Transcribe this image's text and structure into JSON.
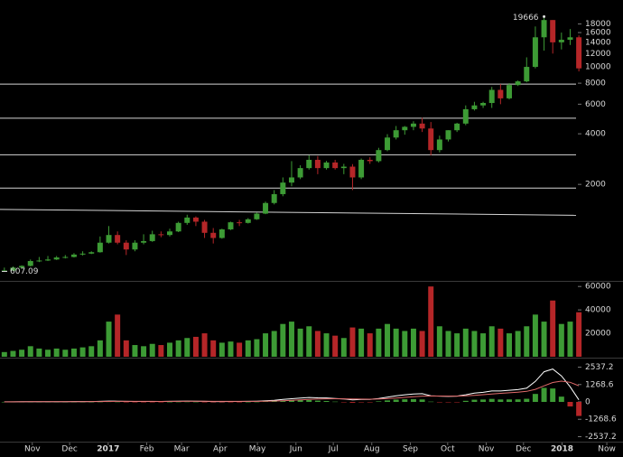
{
  "chart_data": {
    "type": "candlestick",
    "categories": [
      null,
      null,
      null,
      null,
      null,
      null,
      null,
      null,
      null,
      null,
      null,
      null,
      null,
      null,
      null,
      null,
      null,
      null,
      null,
      null,
      null,
      null,
      null,
      null,
      null,
      null,
      null,
      null,
      null,
      null,
      null,
      null,
      null,
      null,
      null,
      null,
      null,
      null,
      null,
      null,
      null,
      null,
      null,
      null,
      null,
      null,
      null,
      null,
      null,
      null,
      null,
      null,
      null,
      null,
      null,
      null,
      null,
      null,
      null,
      null,
      null,
      null,
      null,
      null,
      null,
      null,
      null
    ],
    "open": [
      610,
      615,
      640,
      655,
      700,
      705,
      715,
      735,
      740,
      765,
      775,
      790,
      900,
      1000,
      900,
      820,
      900,
      920,
      1010,
      1000,
      1050,
      1180,
      1270,
      1200,
      1030,
      960,
      1080,
      1190,
      1180,
      1240,
      1340,
      1550,
      1750,
      2050,
      2200,
      2500,
      2800,
      2500,
      2700,
      2500,
      2550,
      2200,
      2800,
      2750,
      3200,
      3800,
      4200,
      4400,
      4600,
      4300,
      3200,
      3700,
      4200,
      4600,
      5600,
      5900,
      6100,
      7300,
      6500,
      7800,
      8200,
      10000,
      15000,
      19000,
      14000,
      14500,
      15000
    ],
    "high": [
      640,
      650,
      660,
      715,
      740,
      750,
      750,
      760,
      780,
      800,
      800,
      980,
      1130,
      1050,
      930,
      930,
      1010,
      1060,
      1050,
      1090,
      1200,
      1320,
      1290,
      1230,
      1100,
      1090,
      1200,
      1230,
      1260,
      1360,
      1580,
      1850,
      2200,
      2750,
      2600,
      2980,
      2950,
      2760,
      2800,
      2650,
      2640,
      2850,
      2900,
      3300,
      3980,
      4450,
      4450,
      4750,
      4980,
      4700,
      3900,
      4200,
      4650,
      5900,
      6200,
      6200,
      7600,
      7900,
      8000,
      8300,
      11400,
      17400,
      19666,
      19000,
      16000,
      16800,
      15400
    ],
    "low": [
      607.09,
      610,
      630,
      650,
      690,
      700,
      710,
      725,
      735,
      755,
      770,
      785,
      890,
      880,
      760,
      800,
      880,
      910,
      970,
      980,
      1040,
      1150,
      1130,
      960,
      890,
      950,
      1070,
      1130,
      1170,
      1230,
      1330,
      1520,
      1700,
      1950,
      2150,
      2450,
      2300,
      2450,
      2450,
      2300,
      1850,
      2150,
      2650,
      2700,
      3150,
      3700,
      3950,
      4200,
      4100,
      2980,
      3100,
      3600,
      4100,
      4500,
      5500,
      5700,
      5700,
      6000,
      6400,
      7700,
      8100,
      9800,
      12500,
      12000,
      12700,
      13500,
      9400
    ],
    "close": [
      615,
      640,
      655,
      700,
      705,
      715,
      735,
      740,
      765,
      775,
      790,
      900,
      1000,
      900,
      820,
      900,
      920,
      1010,
      1000,
      1050,
      1180,
      1270,
      1200,
      1030,
      960,
      1080,
      1190,
      1180,
      1240,
      1340,
      1550,
      1750,
      2050,
      2200,
      2500,
      2800,
      2500,
      2700,
      2500,
      2550,
      2200,
      2800,
      2750,
      3200,
      3800,
      4200,
      4400,
      4600,
      4300,
      3200,
      3700,
      4200,
      4600,
      5600,
      5900,
      6100,
      7300,
      6500,
      7800,
      8200,
      10000,
      15000,
      19000,
      14000,
      14500,
      15000,
      9800
    ],
    "up_color": "#3d9b35",
    "down_color": "#b52628",
    "log_scale": true,
    "ylim": [
      540,
      25000
    ],
    "yticks": [
      2000,
      4000,
      6000,
      8000,
      10000,
      12000,
      14000,
      16000,
      18000
    ],
    "xlim": [
      -0.5,
      71.07
    ],
    "xticks": [
      {
        "value": 3.21,
        "label": "Nov"
      },
      {
        "value": 7.5,
        "label": "Dec"
      },
      {
        "value": 11.93,
        "label": "2017"
      },
      {
        "value": 16.36,
        "label": "Feb"
      },
      {
        "value": 20.36,
        "label": "Mar"
      },
      {
        "value": 24.79,
        "label": "Apr"
      },
      {
        "value": 29.07,
        "label": "May"
      },
      {
        "value": 33.5,
        "label": "Jun"
      },
      {
        "value": 37.79,
        "label": "Jul"
      },
      {
        "value": 42.21,
        "label": "Aug"
      },
      {
        "value": 46.64,
        "label": "Sep"
      },
      {
        "value": 50.93,
        "label": "Oct"
      },
      {
        "value": 55.36,
        "label": "Nov"
      },
      {
        "value": 59.64,
        "label": "Dec"
      },
      {
        "value": 64.07,
        "label": "2018"
      },
      {
        "value": 69.21,
        "label": "Now"
      }
    ],
    "levels": [
      7900,
      4950,
      3000,
      1900
    ],
    "trendline": [
      1420,
      1310
    ],
    "level_color": "#d4d4d4",
    "volume": {
      "values": [
        4000,
        5000,
        6000,
        9000,
        7000,
        6000,
        7000,
        6000,
        7000,
        8000,
        9000,
        14000,
        30000,
        36000,
        14000,
        10000,
        9000,
        11000,
        10000,
        12000,
        14000,
        16000,
        17000,
        20000,
        14000,
        12000,
        13000,
        12000,
        14000,
        15000,
        20000,
        22000,
        28000,
        30000,
        24000,
        26000,
        22000,
        20000,
        18000,
        16000,
        25000,
        24000,
        20000,
        24000,
        28000,
        24000,
        22000,
        24000,
        22000,
        60000,
        26000,
        22000,
        20000,
        24000,
        22000,
        20000,
        26000,
        24000,
        20000,
        22000,
        26000,
        36000,
        30000,
        48000,
        28000,
        30000,
        38000
      ],
      "ylim": [
        0,
        64000
      ],
      "yticks": [
        20000,
        40000,
        60000
      ]
    },
    "macd": {
      "series": [
        {
          "color": "#ffffff",
          "values": [
            5,
            8,
            10,
            15,
            18,
            20,
            22,
            22,
            25,
            25,
            28,
            40,
            60,
            55,
            40,
            35,
            30,
            35,
            35,
            40,
            50,
            60,
            55,
            40,
            25,
            25,
            35,
            35,
            40,
            50,
            80,
            120,
            180,
            230,
            280,
            320,
            300,
            290,
            250,
            220,
            150,
            180,
            180,
            250,
            350,
            450,
            520,
            580,
            600,
            450,
            420,
            400,
            420,
            520,
            640,
            700,
            800,
            800,
            850,
            900,
            1000,
            1500,
            2200,
            2400,
            1900,
            1100,
            150
          ]
        },
        {
          "color": "#e06a6a",
          "values": [
            3,
            5,
            7,
            10,
            13,
            15,
            17,
            19,
            21,
            22,
            24,
            28,
            36,
            42,
            41,
            40,
            38,
            37,
            36,
            37,
            40,
            44,
            46,
            45,
            41,
            38,
            37,
            37,
            38,
            41,
            49,
            63,
            86,
            115,
            148,
            182,
            206,
            223,
            228,
            226,
            211,
            205,
            200,
            210,
            238,
            280,
            328,
            378,
            422,
            428,
            426,
            421,
            421,
            441,
            481,
            525,
            580,
            624,
            669,
            715,
            772,
            918,
            1174,
            1419,
            1515,
            1432,
            1176
          ]
        }
      ],
      "histogram": [
        2,
        3,
        3,
        5,
        5,
        5,
        5,
        3,
        4,
        3,
        4,
        12,
        24,
        13,
        -1,
        -5,
        -8,
        -2,
        -1,
        3,
        10,
        16,
        9,
        -5,
        -16,
        -13,
        -2,
        -2,
        2,
        9,
        31,
        57,
        94,
        115,
        132,
        138,
        94,
        67,
        22,
        -6,
        -61,
        -25,
        -20,
        40,
        112,
        170,
        192,
        202,
        178,
        22,
        -6,
        -21,
        -1,
        79,
        159,
        175,
        220,
        176,
        181,
        185,
        228,
        582,
        1026,
        981,
        385,
        -332,
        -1026
      ],
      "ylim": [
        -3100,
        3100
      ],
      "yticks": [
        2537.2,
        1268.6,
        0,
        -1268.6,
        -2537.2
      ]
    }
  }
}
